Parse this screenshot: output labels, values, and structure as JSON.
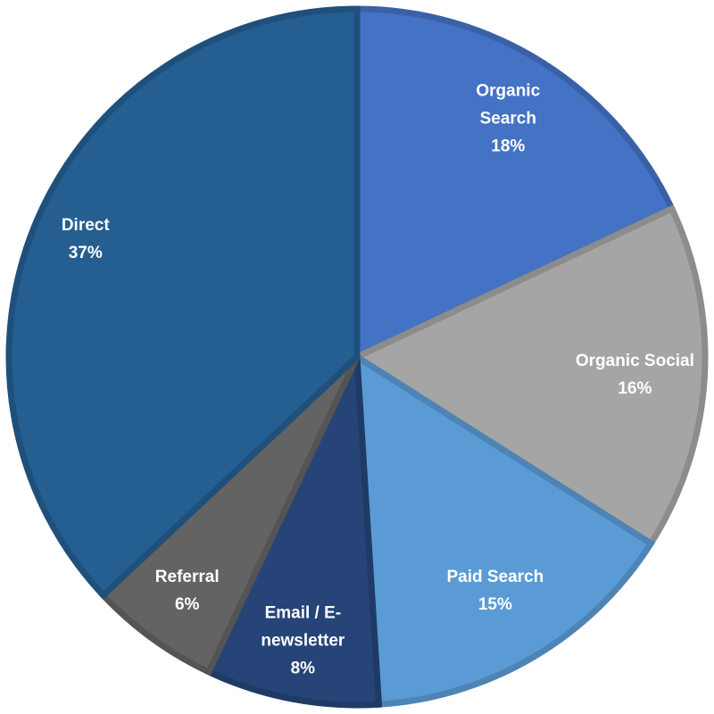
{
  "chart_data": {
    "type": "pie",
    "categories": [
      "Organic Search",
      "Organic Social",
      "Paid Search",
      "Email / E-newsletter",
      "Referral",
      "Direct"
    ],
    "values": [
      18,
      16,
      15,
      8,
      6,
      37
    ],
    "value_labels": [
      "18%",
      "16%",
      "15%",
      "8%",
      "6%",
      "37%"
    ],
    "colors": [
      "#4472c4",
      "#a5a5a5",
      "#5b9bd5",
      "#264478",
      "#636363",
      "#255e91"
    ]
  }
}
